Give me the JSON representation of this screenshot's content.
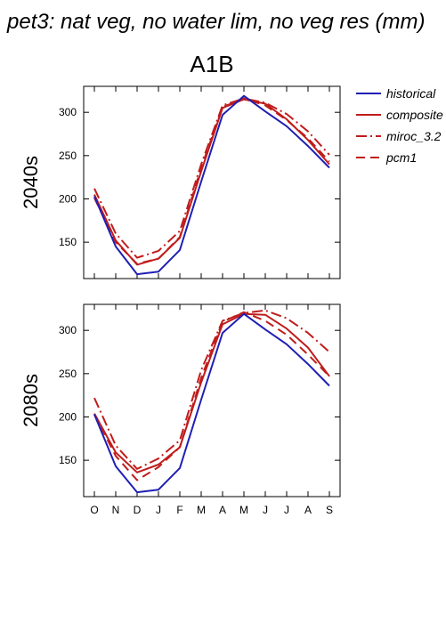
{
  "page": {
    "title": "pet3: nat veg, no water lim, no veg res (mm)",
    "scenario": "A1B"
  },
  "legend": {
    "items": [
      {
        "name": "historical",
        "color": "#1f1fb4",
        "dash": "solid"
      },
      {
        "name": "composite",
        "color": "#c01c1c",
        "dash": "solid"
      },
      {
        "name": "miroc_3.2",
        "color": "#c01c1c",
        "dash": "dashdot"
      },
      {
        "name": "pcm1",
        "color": "#c01c1c",
        "dash": "dash"
      }
    ]
  },
  "chart_data": [
    {
      "type": "line",
      "panel_label": "2040s",
      "categories": [
        "O",
        "N",
        "D",
        "J",
        "F",
        "M",
        "A",
        "M",
        "J",
        "J",
        "A",
        "S"
      ],
      "ylim": [
        108,
        330
      ],
      "yticks": [
        150,
        200,
        250,
        300
      ],
      "series": [
        {
          "name": "historical",
          "values": [
            203,
            145,
            113,
            116,
            141,
            220,
            297,
            319,
            301,
            284,
            261,
            236
          ]
        },
        {
          "name": "composite",
          "values": [
            205,
            152,
            124,
            131,
            155,
            232,
            305,
            315,
            310,
            292,
            268,
            240
          ]
        },
        {
          "name": "miroc_3.2",
          "values": [
            212,
            160,
            132,
            140,
            163,
            240,
            308,
            316,
            311,
            298,
            278,
            251
          ]
        },
        {
          "name": "pcm1",
          "values": [
            201,
            150,
            125,
            131,
            156,
            236,
            306,
            316,
            308,
            291,
            270,
            243
          ]
        }
      ]
    },
    {
      "type": "line",
      "panel_label": "2080s",
      "categories": [
        "O",
        "N",
        "D",
        "J",
        "F",
        "M",
        "A",
        "M",
        "J",
        "J",
        "A",
        "S"
      ],
      "ylim": [
        108,
        330
      ],
      "yticks": [
        150,
        200,
        250,
        300
      ],
      "series": [
        {
          "name": "historical",
          "values": [
            203,
            143,
            113,
            116,
            141,
            220,
            297,
            319,
            301,
            284,
            261,
            236
          ]
        },
        {
          "name": "composite",
          "values": [
            204,
            159,
            136,
            145,
            165,
            240,
            307,
            319,
            318,
            302,
            280,
            247
          ]
        },
        {
          "name": "miroc_3.2",
          "values": [
            222,
            167,
            140,
            152,
            173,
            254,
            311,
            320,
            323,
            314,
            297,
            275
          ]
        },
        {
          "name": "pcm1",
          "values": [
            203,
            155,
            127,
            142,
            165,
            245,
            310,
            321,
            311,
            295,
            272,
            247
          ]
        }
      ]
    }
  ]
}
